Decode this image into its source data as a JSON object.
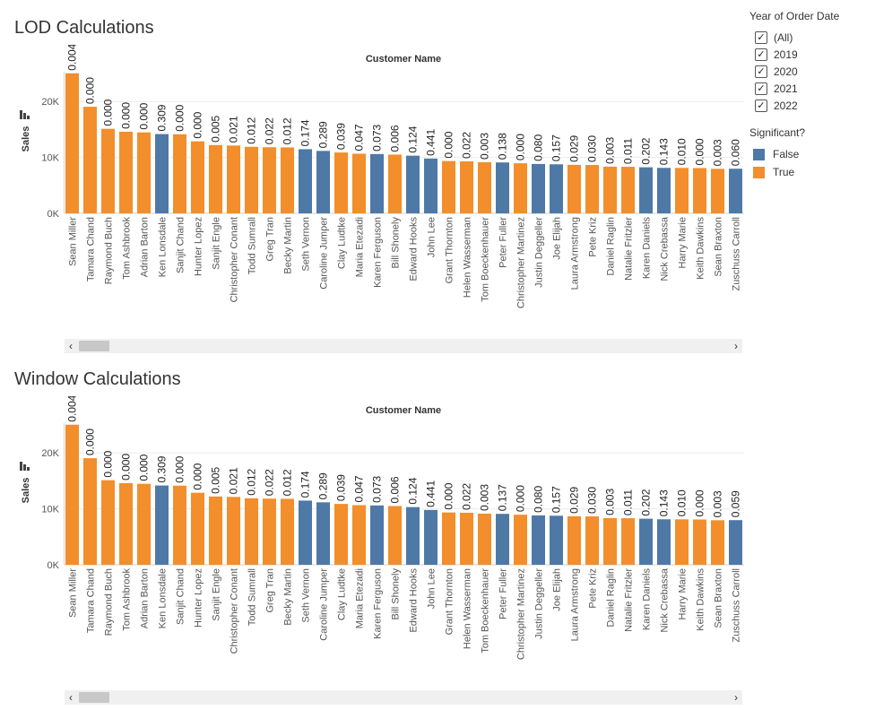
{
  "colors": {
    "false": "#4e79a7",
    "true": "#f28e2b"
  },
  "filter": {
    "title": "Year of Order Date",
    "options": [
      {
        "label": "(All)",
        "checked": true
      },
      {
        "label": "2019",
        "checked": true
      },
      {
        "label": "2020",
        "checked": true
      },
      {
        "label": "2021",
        "checked": true
      },
      {
        "label": "2022",
        "checked": true
      }
    ]
  },
  "legend": {
    "title": "Significant?",
    "items": [
      {
        "label": "False",
        "color": "#4e79a7"
      },
      {
        "label": "True",
        "color": "#f28e2b"
      }
    ]
  },
  "chart_data": [
    {
      "type": "bar",
      "title": "LOD Calculations",
      "xlabel": "Customer Name",
      "ylabel": "Sales",
      "yticks": [
        "0K",
        "10K",
        "20K"
      ],
      "ylim": [
        0,
        25000
      ],
      "categories": [
        "Sean Miller",
        "Tamara Chand",
        "Raymond Buch",
        "Tom Ashbrook",
        "Adrian Barton",
        "Ken Lonsdale",
        "Sanjit Chand",
        "Hunter Lopez",
        "Sanjit Engle",
        "Christopher Conant",
        "Todd Sumrall",
        "Greg Tran",
        "Becky Martin",
        "Seth Vernon",
        "Caroline Jumper",
        "Clay Ludtke",
        "Maria Etezadi",
        "Karen Ferguson",
        "Bill Shonely",
        "Edward Hooks",
        "John Lee",
        "Grant Thornton",
        "Helen Wasserman",
        "Tom Boeckenhauer",
        "Peter Fuller",
        "Christopher Martinez",
        "Justin Deggeller",
        "Joe Elijah",
        "Laura Armstrong",
        "Pete Kriz",
        "Daniel Raglin",
        "Natalie Fritzler",
        "Karen Daniels",
        "Nick Crebassa",
        "Harry Marie",
        "Keith Dawkins",
        "Sean Braxton",
        "Zuschuss Carroll"
      ],
      "values": [
        25043,
        19052,
        15117,
        14596,
        14474,
        14175,
        14142,
        12873,
        12209,
        12129,
        11892,
        11820,
        11790,
        11471,
        11165,
        10880,
        10664,
        10604,
        10502,
        10311,
        9800,
        9351,
        9300,
        9134,
        9100,
        8954,
        8828,
        8769,
        8673,
        8647,
        8350,
        8323,
        8236,
        8130,
        8124,
        8100,
        7960,
        7980
      ],
      "labels": [
        "0.004",
        "0.000",
        "0.000",
        "0.000",
        "0.000",
        "0.309",
        "0.000",
        "0.000",
        "0.005",
        "0.021",
        "0.012",
        "0.022",
        "0.012",
        "0.174",
        "0.289",
        "0.039",
        "0.047",
        "0.073",
        "0.006",
        "0.124",
        "0.441",
        "0.000",
        "0.022",
        "0.003",
        "0.138",
        "0.000",
        "0.080",
        "0.157",
        "0.029",
        "0.030",
        "0.003",
        "0.011",
        "0.202",
        "0.143",
        "0.010",
        "0.000",
        "0.003",
        "0.060"
      ],
      "significant": [
        true,
        true,
        true,
        true,
        true,
        false,
        true,
        true,
        true,
        true,
        true,
        true,
        true,
        false,
        false,
        true,
        true,
        false,
        true,
        false,
        false,
        true,
        true,
        true,
        false,
        true,
        false,
        false,
        true,
        true,
        true,
        true,
        false,
        false,
        true,
        true,
        true,
        false
      ]
    },
    {
      "type": "bar",
      "title": "Window Calculations",
      "xlabel": "Customer Name",
      "ylabel": "Sales",
      "yticks": [
        "0K",
        "10K",
        "20K"
      ],
      "ylim": [
        0,
        25000
      ],
      "categories": [
        "Sean Miller",
        "Tamara Chand",
        "Raymond Buch",
        "Tom Ashbrook",
        "Adrian Barton",
        "Ken Lonsdale",
        "Sanjit Chand",
        "Hunter Lopez",
        "Sanjit Engle",
        "Christopher Conant",
        "Todd Sumrall",
        "Greg Tran",
        "Becky Martin",
        "Seth Vernon",
        "Caroline Jumper",
        "Clay Ludtke",
        "Maria Etezadi",
        "Karen Ferguson",
        "Bill Shonely",
        "Edward Hooks",
        "John Lee",
        "Grant Thornton",
        "Helen Wasserman",
        "Tom Boeckenhauer",
        "Peter Fuller",
        "Christopher Martinez",
        "Justin Deggeller",
        "Joe Elijah",
        "Laura Armstrong",
        "Pete Kriz",
        "Daniel Raglin",
        "Natalie Fritzler",
        "Karen Daniels",
        "Nick Crebassa",
        "Harry Marie",
        "Keith Dawkins",
        "Sean Braxton",
        "Zuschuss Carroll"
      ],
      "values": [
        25043,
        19052,
        15117,
        14596,
        14474,
        14175,
        14142,
        12873,
        12209,
        12129,
        11892,
        11820,
        11790,
        11471,
        11165,
        10880,
        10664,
        10604,
        10502,
        10311,
        9800,
        9351,
        9300,
        9134,
        9100,
        8954,
        8828,
        8769,
        8673,
        8647,
        8350,
        8323,
        8236,
        8130,
        8124,
        8100,
        7960,
        7980
      ],
      "labels": [
        "0.004",
        "0.000",
        "0.000",
        "0.000",
        "0.000",
        "0.309",
        "0.000",
        "0.000",
        "0.005",
        "0.021",
        "0.012",
        "0.022",
        "0.012",
        "0.174",
        "0.289",
        "0.039",
        "0.047",
        "0.073",
        "0.006",
        "0.124",
        "0.441",
        "0.000",
        "0.022",
        "0.003",
        "0.137",
        "0.000",
        "0.080",
        "0.157",
        "0.029",
        "0.030",
        "0.003",
        "0.011",
        "0.202",
        "0.143",
        "0.010",
        "0.000",
        "0.003",
        "0.059"
      ],
      "significant": [
        true,
        true,
        true,
        true,
        true,
        false,
        true,
        true,
        true,
        true,
        true,
        true,
        true,
        false,
        false,
        true,
        true,
        false,
        true,
        false,
        false,
        true,
        true,
        true,
        false,
        true,
        false,
        false,
        true,
        true,
        true,
        true,
        false,
        false,
        true,
        true,
        true,
        false
      ]
    }
  ],
  "scroll": {
    "left_arrow": "‹",
    "right_arrow": "›"
  }
}
